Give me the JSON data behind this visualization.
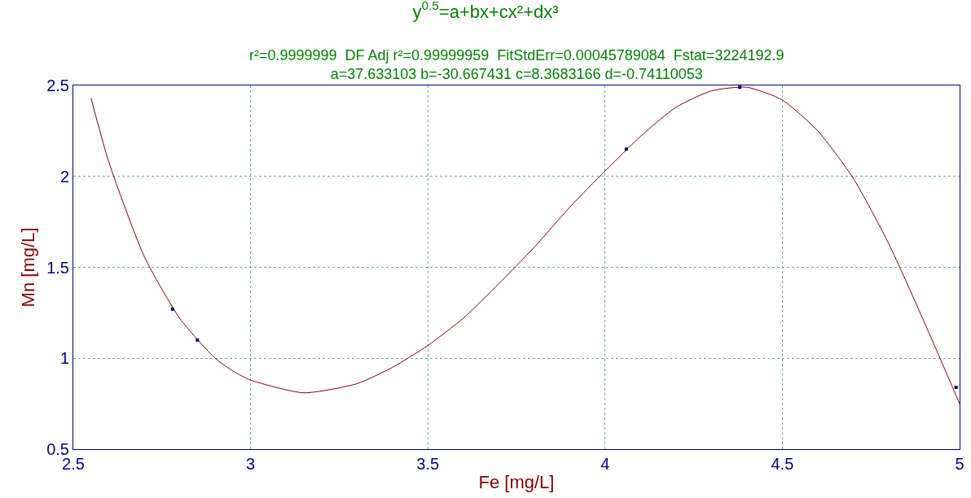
{
  "chart_data": {
    "type": "line",
    "title": "y$^{0.5}$=a+bx+cx²+dx³",
    "subtitle": "r²=0.9999999  DF Adj r²=0.99999959  FitStdErr=0.00045789084  Fstat=3224192.9\na=37.633103 b=-30.667431 c=8.3683166 d=-0.74110053",
    "xlabel": "Fe [mg/L]",
    "ylabel": "Mn [mg/L]",
    "series": [
      {
        "color": "#800000",
        "x": [
          2.55,
          2.6,
          2.7,
          2.8,
          2.9,
          2.95,
          3.0,
          3.15,
          3.3,
          3.4,
          3.5,
          3.6,
          3.7,
          3.8,
          3.9,
          4.0,
          4.1,
          4.2,
          4.3,
          4.4,
          4.5,
          4.6,
          4.7,
          4.8,
          4.9,
          5.0
        ],
        "values": [
          2.43,
          2.08,
          1.56,
          1.22,
          1.0,
          0.93,
          0.88,
          0.81,
          0.86,
          0.95,
          1.07,
          1.22,
          1.41,
          1.61,
          1.83,
          2.03,
          2.22,
          2.38,
          2.47,
          2.49,
          2.42,
          2.25,
          1.99,
          1.63,
          1.2,
          0.75
        ]
      },
      {
        "type": "scatter",
        "color": "#000080",
        "marker": "square",
        "x": [
          2.78,
          2.85,
          4.06,
          4.38,
          4.99
        ],
        "values": [
          1.27,
          1.1,
          2.15,
          2.49,
          0.84
        ]
      }
    ],
    "xlim": [
      2.5,
      5
    ],
    "xticks": [
      2.5,
      3,
      3.5,
      4,
      4.5,
      5
    ],
    "ylim": [
      0.5,
      2.5
    ],
    "yticks": [
      0.5,
      1,
      1.5,
      2,
      2.5
    ],
    "grid": true
  }
}
